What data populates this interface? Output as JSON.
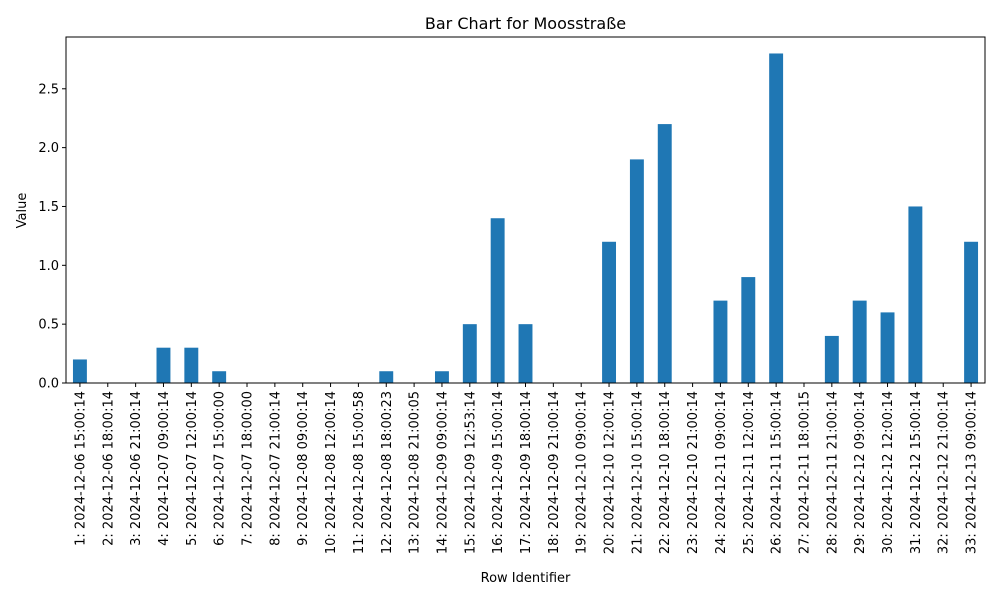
{
  "chart_data": {
    "type": "bar",
    "title": "Bar Chart for Moosstraße",
    "xlabel": "Row Identifier",
    "ylabel": "Value",
    "ylim": [
      0,
      2.94
    ],
    "yticks": [
      "0.0",
      "0.5",
      "1.0",
      "1.5",
      "2.0",
      "2.5"
    ],
    "ytick_values": [
      0,
      0.5,
      1.0,
      1.5,
      2.0,
      2.5
    ],
    "bar_color": "#1f77b4",
    "grid": false,
    "legend": "none",
    "categories": [
      "1: 2024-12-06 15:00:14",
      "2: 2024-12-06 18:00:14",
      "3: 2024-12-06 21:00:14",
      "4: 2024-12-07 09:00:14",
      "5: 2024-12-07 12:00:14",
      "6: 2024-12-07 15:00:00",
      "7: 2024-12-07 18:00:00",
      "8: 2024-12-07 21:00:14",
      "9: 2024-12-08 09:00:14",
      "10: 2024-12-08 12:00:14",
      "11: 2024-12-08 15:00:58",
      "12: 2024-12-08 18:00:23",
      "13: 2024-12-08 21:00:05",
      "14: 2024-12-09 09:00:14",
      "15: 2024-12-09 12:53:14",
      "16: 2024-12-09 15:00:14",
      "17: 2024-12-09 18:00:14",
      "18: 2024-12-09 21:00:14",
      "19: 2024-12-10 09:00:14",
      "20: 2024-12-10 12:00:14",
      "21: 2024-12-10 15:00:14",
      "22: 2024-12-10 18:00:14",
      "23: 2024-12-10 21:00:14",
      "24: 2024-12-11 09:00:14",
      "25: 2024-12-11 12:00:14",
      "26: 2024-12-11 15:00:14",
      "27: 2024-12-11 18:00:15",
      "28: 2024-12-11 21:00:14",
      "29: 2024-12-12 09:00:14",
      "30: 2024-12-12 12:00:14",
      "31: 2024-12-12 15:00:14",
      "32: 2024-12-12 21:00:14",
      "33: 2024-12-13 09:00:14"
    ],
    "values": [
      0.2,
      0,
      0,
      0.3,
      0.3,
      0.1,
      0,
      0,
      0,
      0,
      0,
      0.1,
      0,
      0.1,
      0.5,
      1.4,
      0.5,
      0,
      0,
      1.2,
      1.9,
      2.2,
      0,
      0.7,
      0.9,
      2.8,
      0,
      0.4,
      0.7,
      0.6,
      1.5,
      0,
      1.2
    ]
  }
}
